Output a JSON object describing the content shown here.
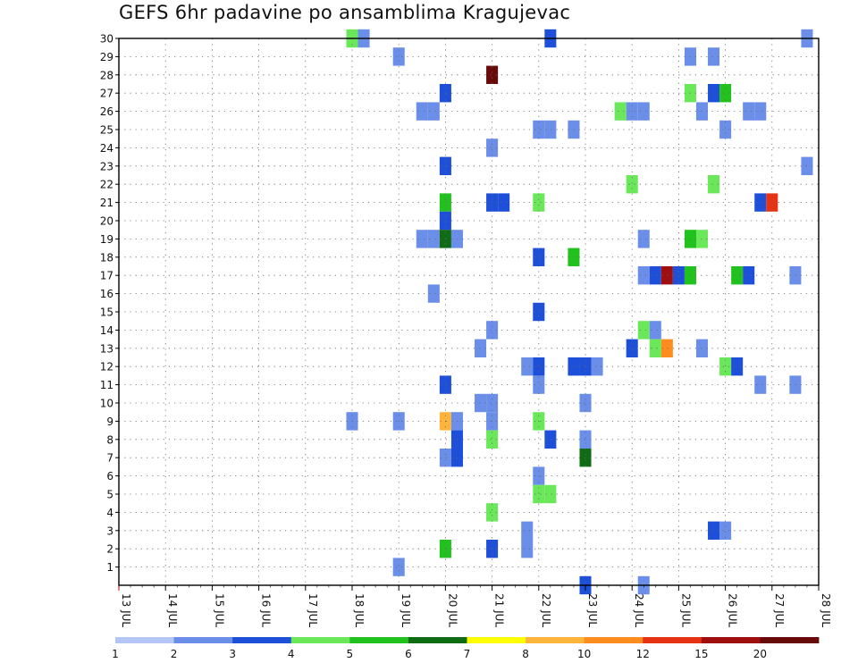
{
  "title": "GEFS 6hr padavine po ansamblima Kragujevac",
  "chart_data": {
    "type": "heatmap",
    "title": "GEFS 6hr padavine po ansamblima Kragujevac",
    "xlabel": "",
    "ylabel": "",
    "x_ticks": [
      "13 JUL",
      "14 JUL",
      "15 JUL",
      "16 JUL",
      "17 JUL",
      "18 JUL",
      "19 JUL",
      "20 JUL",
      "21 JUL",
      "22 JUL",
      "23 JUL",
      "24 JUL",
      "25 JUL",
      "26 JUL",
      "27 JUL",
      "28 JUL"
    ],
    "y_ticks": [
      1,
      2,
      3,
      4,
      5,
      6,
      7,
      8,
      9,
      10,
      11,
      12,
      13,
      14,
      15,
      16,
      17,
      18,
      19,
      20,
      21,
      22,
      23,
      24,
      25,
      26,
      27,
      28,
      29,
      30
    ],
    "ylim": [
      0,
      30
    ],
    "xlim_days": [
      0,
      15
    ],
    "step_hours": 6,
    "grid": true,
    "colorbar": {
      "labels": [
        "1",
        "2",
        "3",
        "4",
        "5",
        "6",
        "7",
        "8",
        "10",
        "12",
        "15",
        "20"
      ],
      "colors": [
        "#b4c6f5",
        "#6b8fe8",
        "#1e4fd8",
        "#6be85a",
        "#22c21e",
        "#0f6b14",
        "#ffff00",
        "#ffb43c",
        "#ff8c1e",
        "#e83214",
        "#a00f0f",
        "#690a0a"
      ]
    },
    "cells": [
      [
        5,
        30,
        3
      ],
      [
        5.25,
        30,
        1
      ],
      [
        9.25,
        30,
        2
      ],
      [
        14.75,
        30,
        1
      ],
      [
        6,
        29,
        1
      ],
      [
        12.25,
        29,
        1
      ],
      [
        12.75,
        29,
        1
      ],
      [
        8,
        28,
        11
      ],
      [
        7,
        27,
        2
      ],
      [
        12.25,
        27,
        3
      ],
      [
        12.75,
        27,
        2
      ],
      [
        13,
        27,
        4
      ],
      [
        6.5,
        26,
        1
      ],
      [
        6.75,
        26,
        1
      ],
      [
        10.75,
        26,
        3
      ],
      [
        11,
        26,
        1
      ],
      [
        11.25,
        26,
        1
      ],
      [
        12.5,
        26,
        1
      ],
      [
        13.5,
        26,
        1
      ],
      [
        13.75,
        26,
        1
      ],
      [
        9,
        25,
        1
      ],
      [
        9.25,
        25,
        1
      ],
      [
        9.75,
        25,
        1
      ],
      [
        13,
        25,
        1
      ],
      [
        8,
        24,
        1
      ],
      [
        7,
        23,
        2
      ],
      [
        14.75,
        23,
        1
      ],
      [
        11,
        22,
        3
      ],
      [
        12.75,
        22,
        3
      ],
      [
        7,
        21,
        4
      ],
      [
        8,
        21,
        2
      ],
      [
        8.25,
        21,
        2
      ],
      [
        9,
        21,
        3
      ],
      [
        13.75,
        21,
        2
      ],
      [
        14,
        21,
        9
      ],
      [
        7,
        20,
        2
      ],
      [
        6.5,
        19,
        1
      ],
      [
        6.75,
        19,
        1
      ],
      [
        7,
        19,
        5
      ],
      [
        7.25,
        19,
        1
      ],
      [
        11.25,
        19,
        1
      ],
      [
        12.25,
        19,
        4
      ],
      [
        12.5,
        19,
        3
      ],
      [
        9,
        18,
        2
      ],
      [
        9.75,
        18,
        4
      ],
      [
        11.25,
        17,
        1
      ],
      [
        11.5,
        17,
        2
      ],
      [
        11.75,
        17,
        10
      ],
      [
        12,
        17,
        2
      ],
      [
        12.25,
        17,
        4
      ],
      [
        13.25,
        17,
        4
      ],
      [
        13.5,
        17,
        2
      ],
      [
        14.5,
        17,
        1
      ],
      [
        6.75,
        16,
        1
      ],
      [
        9,
        15,
        2
      ],
      [
        8,
        14,
        1
      ],
      [
        11.25,
        14,
        3
      ],
      [
        11.5,
        14,
        1
      ],
      [
        7.75,
        13,
        1
      ],
      [
        11,
        13,
        2
      ],
      [
        11.5,
        13,
        3
      ],
      [
        11.75,
        13,
        8
      ],
      [
        12.5,
        13,
        1
      ],
      [
        8.75,
        12,
        1
      ],
      [
        9,
        12,
        2
      ],
      [
        9.75,
        12,
        2
      ],
      [
        10,
        12,
        2
      ],
      [
        10.25,
        12,
        1
      ],
      [
        13,
        12,
        3
      ],
      [
        13.25,
        12,
        2
      ],
      [
        7,
        11,
        2
      ],
      [
        9,
        11,
        1
      ],
      [
        13.75,
        11,
        1
      ],
      [
        14.5,
        11,
        1
      ],
      [
        7.75,
        10,
        1
      ],
      [
        8,
        10,
        1
      ],
      [
        10,
        10,
        1
      ],
      [
        5,
        9,
        1
      ],
      [
        6,
        9,
        1
      ],
      [
        7,
        9,
        7
      ],
      [
        7.25,
        9,
        1
      ],
      [
        8,
        9,
        1
      ],
      [
        9,
        9,
        3
      ],
      [
        7.25,
        8,
        2
      ],
      [
        8,
        8,
        3
      ],
      [
        9.25,
        8,
        2
      ],
      [
        10,
        8,
        1
      ],
      [
        7,
        7,
        1
      ],
      [
        7.25,
        7,
        2
      ],
      [
        10,
        7,
        5
      ],
      [
        9,
        6,
        1
      ],
      [
        9,
        5,
        3
      ],
      [
        9.25,
        5,
        3
      ],
      [
        8,
        4,
        3
      ],
      [
        8.75,
        3,
        1
      ],
      [
        12.75,
        3,
        2
      ],
      [
        13,
        3,
        1
      ],
      [
        7,
        2,
        4
      ],
      [
        8,
        2,
        2
      ],
      [
        8.75,
        2,
        1
      ],
      [
        6,
        1,
        1
      ],
      [
        10,
        0,
        2
      ],
      [
        11.25,
        0,
        1
      ]
    ]
  }
}
